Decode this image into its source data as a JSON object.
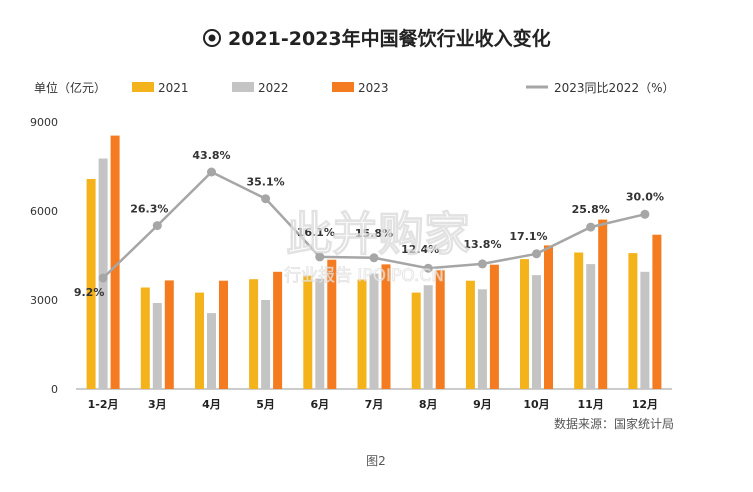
{
  "chart_data": {
    "type": "bar",
    "title": "2021-2023年中国餐饮行业收入变化",
    "unit_label": "单位（亿元）",
    "categories": [
      "1-2月",
      "3月",
      "4月",
      "5月",
      "6月",
      "7月",
      "8月",
      "9月",
      "10月",
      "11月",
      "12月"
    ],
    "series": [
      {
        "name": "2021",
        "color": "#F5B31B",
        "values": [
          7080,
          3420,
          3250,
          3700,
          3820,
          3690,
          3250,
          3650,
          4380,
          4600,
          4580
        ]
      },
      {
        "name": "2022",
        "color": "#C4C4C4",
        "values": [
          7770,
          2900,
          2560,
          3000,
          3720,
          3890,
          3500,
          3360,
          3840,
          4210,
          3950
        ]
      },
      {
        "name": "2023",
        "color": "#F47B20",
        "values": [
          8540,
          3660,
          3650,
          3950,
          4360,
          4200,
          4000,
          4190,
          4840,
          5710,
          5200
        ]
      }
    ],
    "line_series": {
      "name": "2023同比2022（%）",
      "color": "#A6A6A6",
      "values": [
        9.2,
        26.3,
        43.8,
        35.1,
        16.1,
        15.8,
        12.4,
        13.8,
        17.1,
        25.8,
        30.0
      ],
      "labels": [
        "9.2%",
        "26.3%",
        "43.8%",
        "35.1%",
        "16.1%",
        "15.8%",
        "12.4%",
        "13.8%",
        "17.1%",
        "25.8%",
        "30.0%"
      ]
    },
    "y_ticks": [
      "0",
      "3000",
      "6000",
      "9000"
    ],
    "ylim": [
      0,
      9000
    ],
    "legend_position": "top",
    "source": "数据来源：国家统计局",
    "caption": "图2",
    "watermark_main": "此并购家",
    "watermark_sub": "行业报告 IPOIPO.CN"
  }
}
